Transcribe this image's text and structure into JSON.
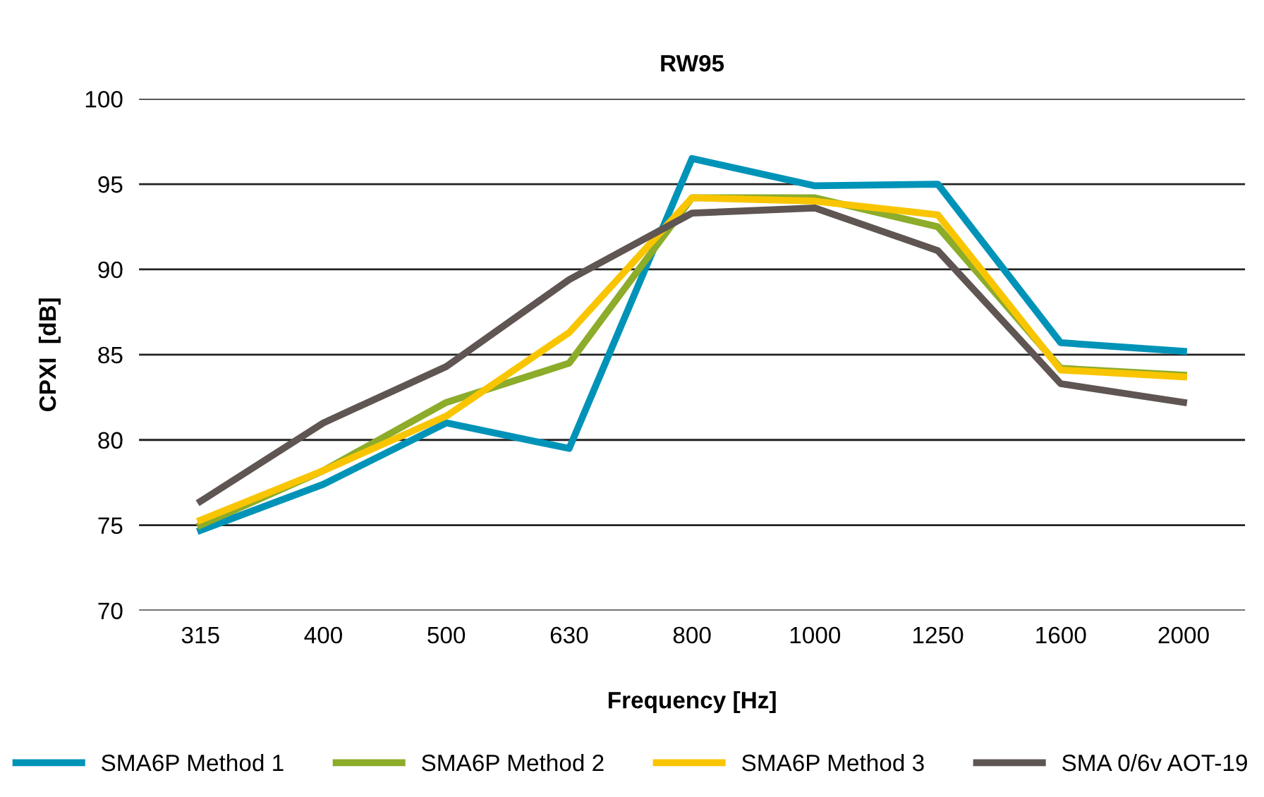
{
  "chart_data": {
    "type": "line",
    "title": "RW95",
    "xlabel": "Frequency [Hz]",
    "ylabel": "CPXI  [dB]",
    "categories": [
      "315",
      "400",
      "500",
      "630",
      "800",
      "1000",
      "1250",
      "1600",
      "2000"
    ],
    "ylim": [
      70,
      100
    ],
    "yticks": [
      70,
      75,
      80,
      85,
      90,
      95,
      100
    ],
    "grid": "y",
    "legend": "bottom",
    "marker": "none",
    "line_style": "solid",
    "series": [
      {
        "name": "SMA6P Method 1",
        "color": "#0093b8",
        "values": [
          74.7,
          77.4,
          81.0,
          79.5,
          96.5,
          94.9,
          95.0,
          85.7,
          85.2
        ]
      },
      {
        "name": "SMA6P Method 2",
        "color": "#8cac2a",
        "values": [
          75.0,
          78.2,
          82.2,
          84.5,
          94.2,
          94.2,
          92.5,
          84.2,
          83.8
        ]
      },
      {
        "name": "SMA6P Method 3",
        "color": "#f9c500",
        "values": [
          75.3,
          78.2,
          81.4,
          86.3,
          94.2,
          94.0,
          93.2,
          84.1,
          83.7
        ]
      },
      {
        "name": "SMA 0/6v AOT-19",
        "color": "#5f5553",
        "values": [
          76.4,
          81.0,
          84.3,
          89.4,
          93.3,
          93.6,
          91.1,
          83.3,
          82.2
        ]
      }
    ]
  }
}
